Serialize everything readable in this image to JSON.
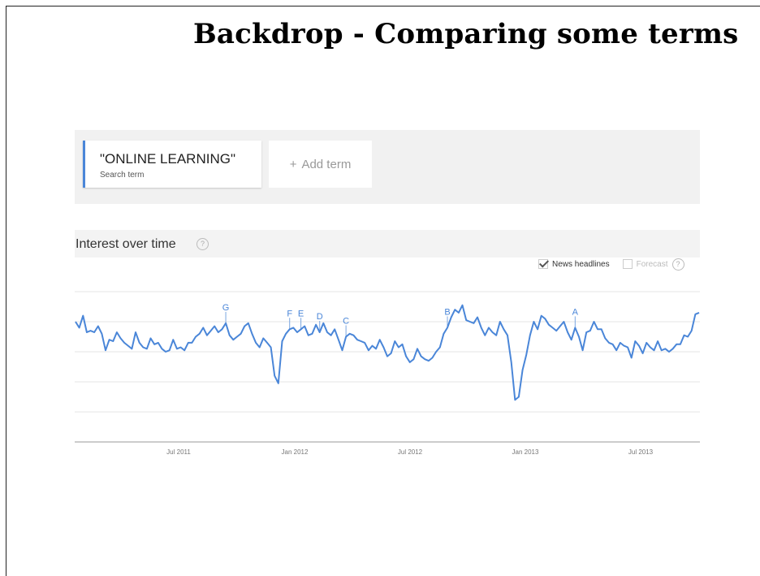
{
  "slide": {
    "title": "Backdrop - Comparing some terms"
  },
  "search": {
    "term": "\"ONLINE LEARNING\"",
    "term_sub": "Search term",
    "add_plus": "+",
    "add_label": "Add term"
  },
  "section": {
    "title": "Interest over time",
    "help_glyph": "?"
  },
  "options": {
    "news_headlines": "News headlines",
    "news_checked": true,
    "forecast": "Forecast",
    "forecast_checked": false,
    "help_glyph": "?"
  },
  "colors": {
    "series": "#4a86d8",
    "accent": "#4a86d8",
    "grid": "#e5e5e5"
  },
  "chart_data": {
    "type": "line",
    "series": [
      {
        "values": [
          80,
          76,
          84,
          73,
          74,
          73,
          77,
          72,
          61,
          68,
          67,
          73,
          69,
          66,
          64,
          62,
          73,
          66,
          63,
          62,
          69,
          65,
          66,
          62,
          60,
          61,
          68,
          62,
          63,
          61,
          66,
          66,
          70,
          72,
          76,
          71,
          74,
          77,
          73,
          75,
          79,
          71,
          68,
          70,
          72,
          77,
          79,
          72,
          66,
          63,
          69,
          66,
          63,
          44,
          39,
          67,
          72,
          75,
          76,
          73,
          75,
          77,
          71,
          72,
          78,
          73,
          79,
          73,
          71,
          75,
          68,
          61,
          70,
          72,
          71,
          68,
          67,
          66,
          61,
          64,
          62,
          68,
          63,
          57,
          59,
          67,
          63,
          65,
          57,
          53,
          55,
          62,
          57,
          55,
          54,
          56,
          60,
          63,
          72,
          76,
          83,
          88,
          86,
          91,
          81,
          80,
          79,
          83,
          76,
          71,
          76,
          73,
          71,
          80,
          75,
          71,
          53,
          28,
          30,
          48,
          58,
          71,
          80,
          75,
          84,
          82,
          78,
          76,
          74,
          77,
          80,
          73,
          68,
          76,
          70,
          61,
          73,
          74,
          80,
          75,
          75,
          69,
          66,
          65,
          61,
          66,
          64,
          63,
          56,
          67,
          64,
          59,
          66,
          63,
          61,
          67,
          61,
          62,
          60,
          62,
          65,
          65,
          71,
          70,
          74,
          85,
          86
        ]
      }
    ],
    "y_range": [
      0,
      100
    ],
    "x_ticks": [
      "Jul 2011",
      "Jan 2012",
      "Jul 2012",
      "Jan 2013",
      "Jul 2013"
    ],
    "annotations": [
      {
        "label": "G",
        "index": 40
      },
      {
        "label": "F",
        "index": 57
      },
      {
        "label": "E",
        "index": 60
      },
      {
        "label": "D",
        "index": 65
      },
      {
        "label": "C",
        "index": 72
      },
      {
        "label": "B",
        "index": 99
      },
      {
        "label": "A",
        "index": 133
      }
    ],
    "grid": true,
    "legend": "none"
  }
}
